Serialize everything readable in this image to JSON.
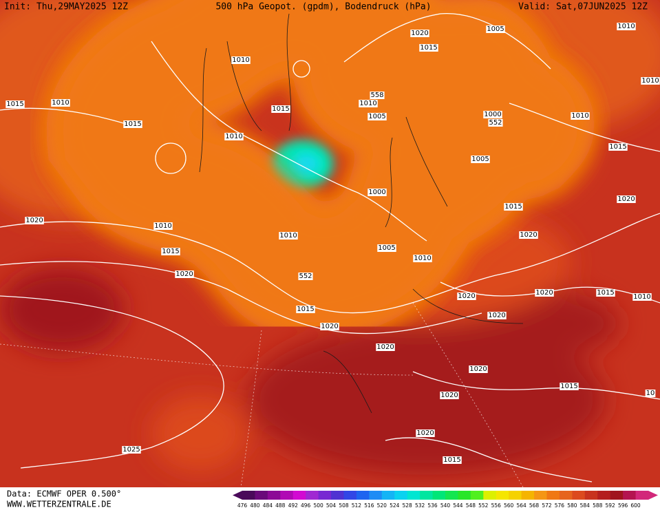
{
  "header": {
    "init": "Init: Thu,29MAY2025 12Z",
    "title": "500 hPa Geopot. (gpdm), Bodendruck (hPa)",
    "valid": "Valid: Sat,07JUN2025 12Z"
  },
  "isobar_labels": [
    "1010",
    "1005",
    "1020",
    "1015",
    "1010",
    "1010",
    "1015",
    "1010",
    "558",
    "1010",
    "1015",
    "1005",
    "1000",
    "552",
    "1010",
    "1015",
    "1010",
    "1015",
    "1005",
    "1000",
    "1020",
    "1015",
    "1020",
    "1010",
    "1010",
    "1020",
    "1005",
    "1015",
    "1010",
    "1020",
    "552",
    "1020",
    "1020",
    "1015",
    "1010",
    "1015",
    "1020",
    "1020",
    "1020",
    "1020",
    "1015",
    "10",
    "1020",
    "1020",
    "1025",
    "1015"
  ],
  "footer": {
    "source": "Data: ECMWF OPER 0.500°",
    "site": "WWW.WETTERZENTRALE.DE"
  },
  "color_scale": {
    "labels": [
      476,
      480,
      484,
      488,
      492,
      496,
      500,
      504,
      508,
      512,
      516,
      520,
      524,
      528,
      532,
      536,
      540,
      544,
      548,
      552,
      556,
      560,
      564,
      568,
      572,
      576,
      580,
      584,
      588,
      592,
      596,
      600
    ],
    "colors": [
      "#4a0a5a",
      "#6a0a7a",
      "#8c0a96",
      "#b00ab4",
      "#d20ad2",
      "#a028d2",
      "#7828d2",
      "#5032d2",
      "#3246e6",
      "#1e64f0",
      "#1e8cf5",
      "#14b4f5",
      "#0ad2f0",
      "#00e6d2",
      "#00e6a0",
      "#00e678",
      "#14e650",
      "#28e628",
      "#50f01e",
      "#dcf000",
      "#f5e600",
      "#f5d200",
      "#f5b400",
      "#f59614",
      "#f07814",
      "#e6641e",
      "#dc4a1e",
      "#c8321e",
      "#b41e1e",
      "#a0141e",
      "#b41450",
      "#d2287a"
    ]
  }
}
